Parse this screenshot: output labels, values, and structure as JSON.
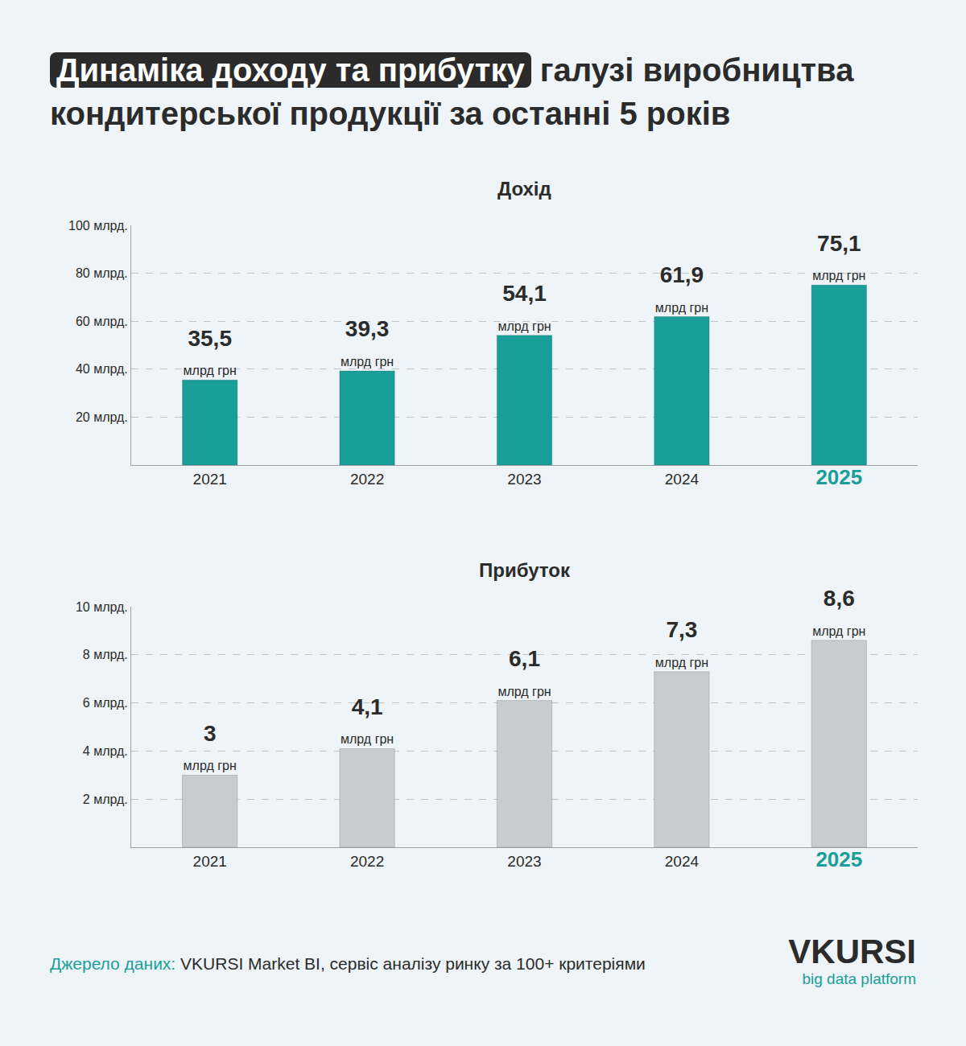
{
  "header": {
    "title_highlight": "Динаміка доходу та прибутку",
    "title_rest": "галузі виробництва кондитерської продукції за останні 5 років"
  },
  "footer": {
    "source_label": "Джерело даних:",
    "source_text": "VKURSI Market BI, сервіс аналізу ринку за 100+ критеріями",
    "logo": "VKURSI",
    "logo_sub": "big data platform"
  },
  "chart_data": [
    {
      "type": "bar",
      "title": "Дохід",
      "categories": [
        "2021",
        "2022",
        "2023",
        "2024",
        "2025"
      ],
      "values": [
        35.5,
        39.3,
        54.1,
        61.9,
        75.1
      ],
      "value_labels": [
        "35,5 млрд грн",
        "39,3 млрд грн",
        "54,1 млрд грн",
        "61,9 млрд грн",
        "75,1 млрд грн"
      ],
      "data_labels": true,
      "color": "#1a9e9a",
      "grid": true,
      "ylim": [
        0,
        100
      ],
      "yticks": [
        {
          "value": 20,
          "label": "20 млрд."
        },
        {
          "value": 40,
          "label": "40 млрд."
        },
        {
          "value": 60,
          "label": "60 млрд."
        },
        {
          "value": 80,
          "label": "80 млрд."
        },
        {
          "value": 100,
          "label": "100 млрд."
        }
      ]
    },
    {
      "type": "bar",
      "title": "Прибуток",
      "categories": [
        "2021",
        "2022",
        "2023",
        "2024",
        "2025"
      ],
      "values": [
        3,
        4.1,
        6.1,
        7.3,
        8.6
      ],
      "value_labels": [
        "3 млрд грн",
        "4,1 млрд грн",
        "6,1 млрд грн",
        "7,3 млрд грн",
        "8,6 млрд грн"
      ],
      "data_labels": true,
      "color": "#c5cdd1",
      "grid": true,
      "ylim": [
        0,
        10
      ],
      "yticks": [
        {
          "value": 2,
          "label": "2 млрд."
        },
        {
          "value": 4,
          "label": "4 млрд."
        },
        {
          "value": 6,
          "label": "6 млрд."
        },
        {
          "value": 8,
          "label": "8 млрд."
        },
        {
          "value": 10,
          "label": "10 млрд."
        }
      ]
    }
  ]
}
